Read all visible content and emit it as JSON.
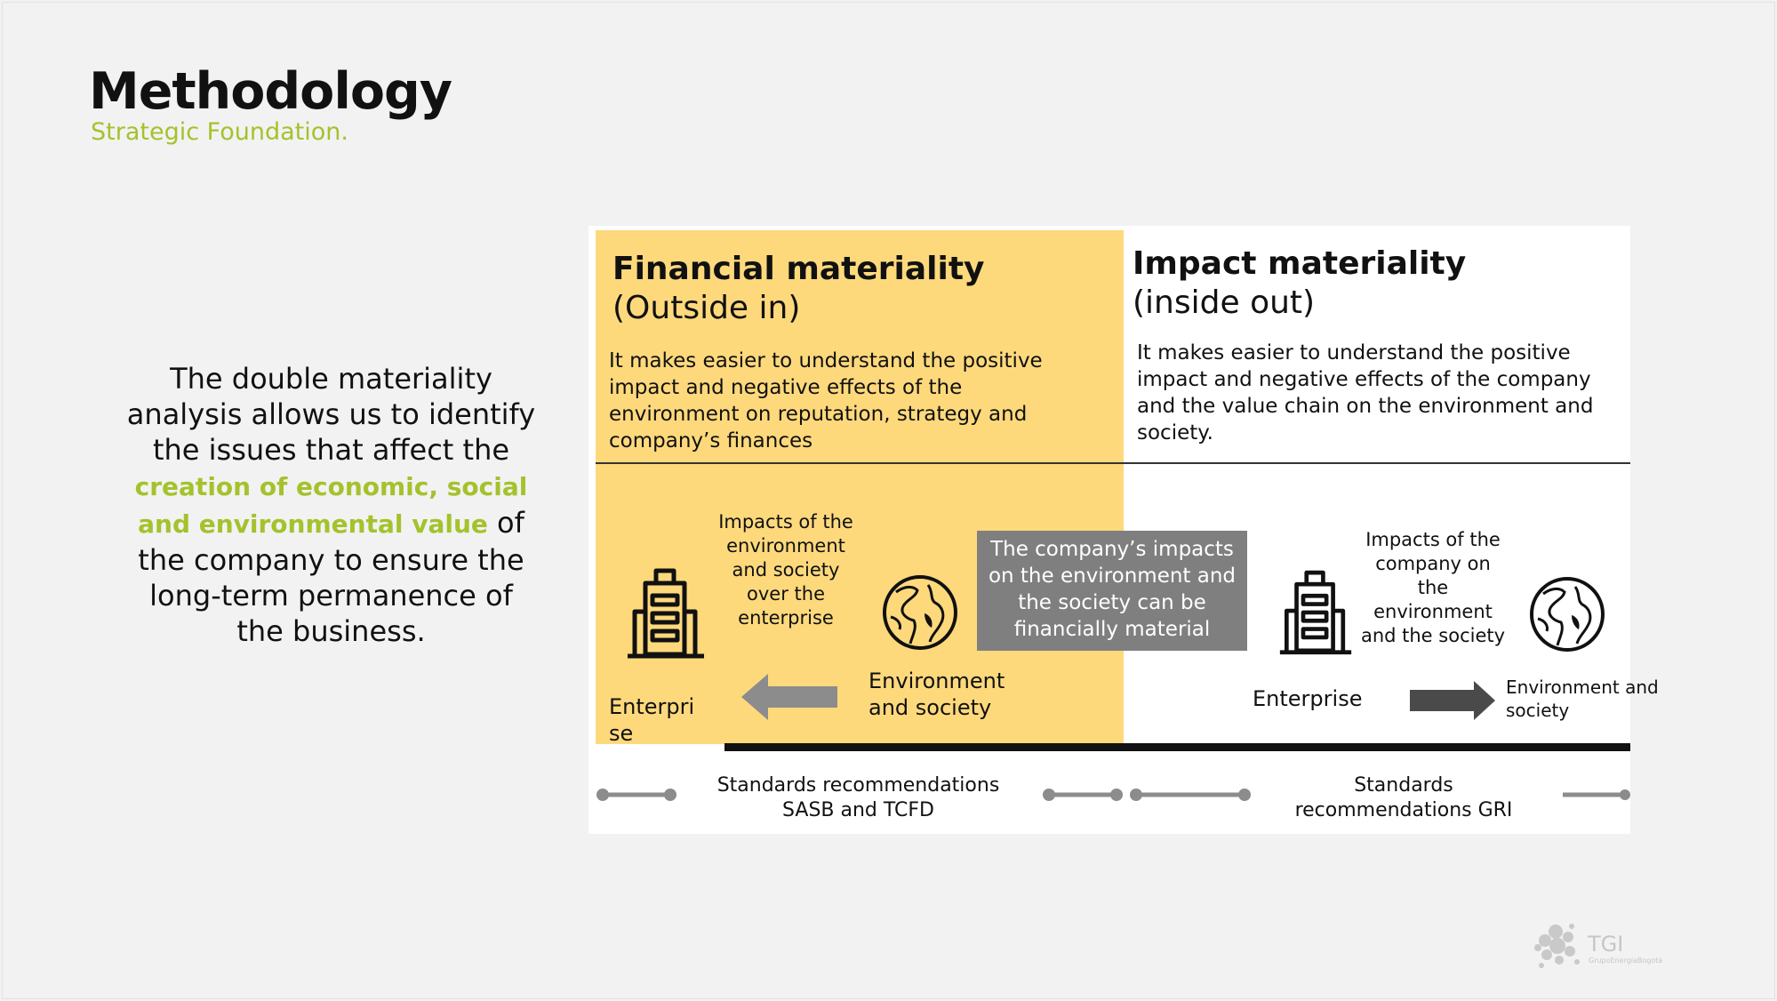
{
  "header": {
    "title": "Methodology",
    "subtitle": "Strategic Foundation."
  },
  "intro": {
    "text_before": "The double materiality analysis allows us to identify the issues that affect the",
    "highlight": "creation of economic, social and environmental value",
    "text_after": "of the company to ensure the long-term permanence of the business."
  },
  "financial": {
    "title": "Financial materiality",
    "subtitle": "(Outside in)",
    "description": "It makes easier to understand the positive impact and negative effects of the environment on reputation, strategy and company’s finances",
    "enterprise_label": "Enterprise",
    "flow_label": "Impacts of the environment and society over the enterprise",
    "environment_label": "Environment and society",
    "standards": "Standards recommendations SASB and TCFD"
  },
  "impact": {
    "title": "Impact materiality",
    "subtitle": "(inside out)",
    "description": "It makes easier to understand the positive impact and negative effects of the company and the value chain on the environment and society.",
    "enterprise_label": "Enterprise",
    "flow_label": "Impacts of the company on the environment and the society",
    "environment_label": "Environment and society",
    "standards": "Standards recommendations GRI"
  },
  "callout": "The company’s impacts on the environment and the society can be financially material",
  "logo": {
    "name": "TGI",
    "tagline": "GrupoEnergíaBogotá"
  },
  "colors": {
    "accent_green": "#a4c22c",
    "yellow": "#fed97c",
    "callout_gray": "#7f7f7f",
    "arrow_gray": "#8c8c8c",
    "arrow_dark": "#4a4a4a"
  }
}
